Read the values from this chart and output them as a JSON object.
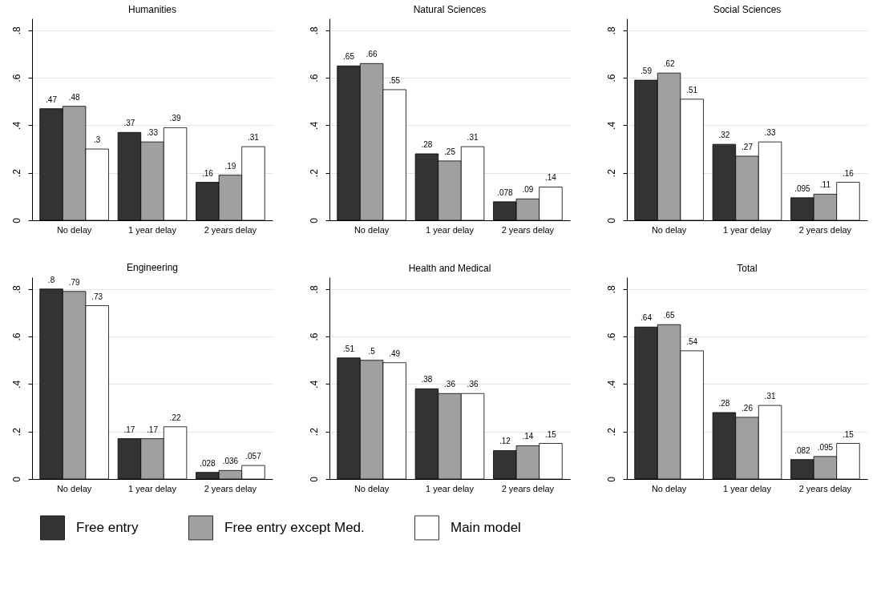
{
  "chart_data": [
    {
      "type": "bar",
      "title": "Humanities",
      "categories": [
        "No delay",
        "1 year delay",
        "2 years delay"
      ],
      "ylim": [
        0,
        0.85
      ],
      "yticks": [
        {
          "value": 0,
          "label": "0"
        },
        {
          "value": 0.2,
          "label": ".2"
        },
        {
          "value": 0.4,
          "label": ".4"
        },
        {
          "value": 0.6,
          "label": ".6"
        },
        {
          "value": 0.8,
          "label": ".8"
        }
      ],
      "grid": "y",
      "legend": "bottom",
      "series": [
        {
          "name": "Free entry",
          "color": "#333333",
          "values": [
            0.47,
            0.37,
            0.16
          ],
          "value_labels": [
            ".47",
            ".37",
            ".16"
          ]
        },
        {
          "name": "Free entry except Med.",
          "color": "#a0a0a0",
          "values": [
            0.48,
            0.33,
            0.19
          ],
          "value_labels": [
            ".48",
            ".33",
            ".19"
          ]
        },
        {
          "name": "Main model",
          "color": "#ffffff",
          "values": [
            0.3,
            0.39,
            0.31
          ],
          "value_labels": [
            ".3",
            ".39",
            ".31"
          ]
        }
      ]
    },
    {
      "type": "bar",
      "title": "Natural Sciences",
      "categories": [
        "No delay",
        "1 year delay",
        "2 years delay"
      ],
      "ylim": [
        0,
        0.85
      ],
      "yticks": [
        {
          "value": 0,
          "label": "0"
        },
        {
          "value": 0.2,
          "label": ".2"
        },
        {
          "value": 0.4,
          "label": ".4"
        },
        {
          "value": 0.6,
          "label": ".6"
        },
        {
          "value": 0.8,
          "label": ".8"
        }
      ],
      "grid": "y",
      "legend": "bottom",
      "series": [
        {
          "name": "Free entry",
          "color": "#333333",
          "values": [
            0.65,
            0.28,
            0.078
          ],
          "value_labels": [
            ".65",
            ".28",
            ".078"
          ]
        },
        {
          "name": "Free entry except Med.",
          "color": "#a0a0a0",
          "values": [
            0.66,
            0.25,
            0.09
          ],
          "value_labels": [
            ".66",
            ".25",
            ".09"
          ]
        },
        {
          "name": "Main model",
          "color": "#ffffff",
          "values": [
            0.55,
            0.31,
            0.14
          ],
          "value_labels": [
            ".55",
            ".31",
            ".14"
          ]
        }
      ]
    },
    {
      "type": "bar",
      "title": "Social Sciences",
      "categories": [
        "No delay",
        "1 year delay",
        "2 years delay"
      ],
      "ylim": [
        0,
        0.85
      ],
      "yticks": [
        {
          "value": 0,
          "label": "0"
        },
        {
          "value": 0.2,
          "label": ".2"
        },
        {
          "value": 0.4,
          "label": ".4"
        },
        {
          "value": 0.6,
          "label": ".6"
        },
        {
          "value": 0.8,
          "label": ".8"
        }
      ],
      "grid": "y",
      "legend": "bottom",
      "series": [
        {
          "name": "Free entry",
          "color": "#333333",
          "values": [
            0.59,
            0.32,
            0.095
          ],
          "value_labels": [
            ".59",
            ".32",
            ".095"
          ]
        },
        {
          "name": "Free entry except Med.",
          "color": "#a0a0a0",
          "values": [
            0.62,
            0.27,
            0.11
          ],
          "value_labels": [
            ".62",
            ".27",
            ".11"
          ]
        },
        {
          "name": "Main model",
          "color": "#ffffff",
          "values": [
            0.51,
            0.33,
            0.16
          ],
          "value_labels": [
            ".51",
            ".33",
            ".16"
          ]
        }
      ]
    },
    {
      "type": "bar",
      "title": "Engineering",
      "categories": [
        "No delay",
        "1 year delay",
        "2 years delay"
      ],
      "ylim": [
        0,
        0.85
      ],
      "yticks": [
        {
          "value": 0,
          "label": "0"
        },
        {
          "value": 0.2,
          "label": ".2"
        },
        {
          "value": 0.4,
          "label": ".4"
        },
        {
          "value": 0.6,
          "label": ".6"
        },
        {
          "value": 0.8,
          "label": ".8"
        }
      ],
      "grid": "y",
      "legend": "bottom",
      "series": [
        {
          "name": "Free entry",
          "color": "#333333",
          "values": [
            0.8,
            0.17,
            0.028
          ],
          "value_labels": [
            ".8",
            ".17",
            ".028"
          ]
        },
        {
          "name": "Free entry except Med.",
          "color": "#a0a0a0",
          "values": [
            0.79,
            0.17,
            0.036
          ],
          "value_labels": [
            ".79",
            ".17",
            ".036"
          ]
        },
        {
          "name": "Main model",
          "color": "#ffffff",
          "values": [
            0.73,
            0.22,
            0.057
          ],
          "value_labels": [
            ".73",
            ".22",
            ".057"
          ]
        }
      ]
    },
    {
      "type": "bar",
      "title": "Health and Medical",
      "categories": [
        "No delay",
        "1 year delay",
        "2 years delay"
      ],
      "ylim": [
        0,
        0.85
      ],
      "yticks": [
        {
          "value": 0,
          "label": "0"
        },
        {
          "value": 0.2,
          "label": ".2"
        },
        {
          "value": 0.4,
          "label": ".4"
        },
        {
          "value": 0.6,
          "label": ".6"
        },
        {
          "value": 0.8,
          "label": ".8"
        }
      ],
      "grid": "y",
      "legend": "bottom",
      "series": [
        {
          "name": "Free entry",
          "color": "#333333",
          "values": [
            0.51,
            0.38,
            0.12
          ],
          "value_labels": [
            ".51",
            ".38",
            ".12"
          ]
        },
        {
          "name": "Free entry except Med.",
          "color": "#a0a0a0",
          "values": [
            0.5,
            0.36,
            0.14
          ],
          "value_labels": [
            ".5",
            ".36",
            ".14"
          ]
        },
        {
          "name": "Main model",
          "color": "#ffffff",
          "values": [
            0.49,
            0.36,
            0.15
          ],
          "value_labels": [
            ".49",
            ".36",
            ".15"
          ]
        }
      ]
    },
    {
      "type": "bar",
      "title": "Total",
      "categories": [
        "No delay",
        "1 year delay",
        "2 years delay"
      ],
      "ylim": [
        0,
        0.85
      ],
      "yticks": [
        {
          "value": 0,
          "label": "0"
        },
        {
          "value": 0.2,
          "label": ".2"
        },
        {
          "value": 0.4,
          "label": ".4"
        },
        {
          "value": 0.6,
          "label": ".6"
        },
        {
          "value": 0.8,
          "label": ".8"
        }
      ],
      "grid": "y",
      "legend": "bottom",
      "series": [
        {
          "name": "Free entry",
          "color": "#333333",
          "values": [
            0.64,
            0.28,
            0.082
          ],
          "value_labels": [
            ".64",
            ".28",
            ".082"
          ]
        },
        {
          "name": "Free entry except Med.",
          "color": "#a0a0a0",
          "values": [
            0.65,
            0.26,
            0.095
          ],
          "value_labels": [
            ".65",
            ".26",
            ".095"
          ]
        },
        {
          "name": "Main model",
          "color": "#ffffff",
          "values": [
            0.54,
            0.31,
            0.15
          ],
          "value_labels": [
            ".54",
            ".31",
            ".15"
          ]
        }
      ]
    }
  ]
}
